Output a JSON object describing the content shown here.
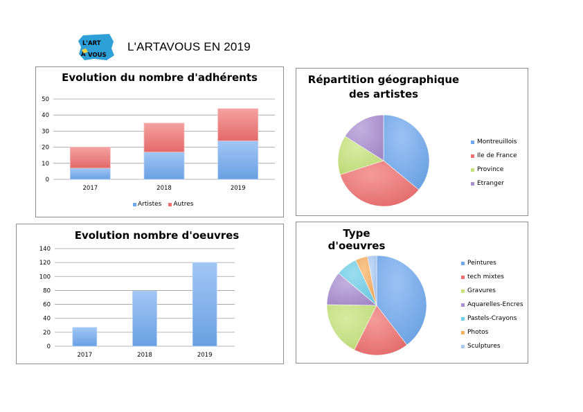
{
  "header": {
    "title": "L'ARTAVOUS EN 2019",
    "logo_text": "L'ART À VOUS",
    "logo_color": "#2f9fd8"
  },
  "colors": {
    "blue": "#6fa8ee",
    "red": "#ef6e6e",
    "green": "#c6e27a",
    "purple": "#a98ed0",
    "cyan": "#6fcfe8",
    "orange": "#f7ad5e",
    "lightblue": "#a9c9f5"
  },
  "chart_data": [
    {
      "type": "bar",
      "stacked": true,
      "title": "Evolution du nombre d'adhérents",
      "categories": [
        "2017",
        "2018",
        "2019"
      ],
      "series": [
        {
          "name": "Artistes",
          "values": [
            7,
            17,
            24
          ],
          "color": "#6fa8ee"
        },
        {
          "name": "Autres",
          "values": [
            13,
            18,
            20
          ],
          "color": "#ef6e6e"
        }
      ],
      "yticks": [
        "0",
        "10",
        "20",
        "30",
        "40",
        "50"
      ],
      "ylim": [
        0,
        50
      ],
      "grid": true,
      "legend": "bottom"
    },
    {
      "type": "pie",
      "title": "Répartition géographique des artistes",
      "labels": [
        "Montreuillois",
        "Ile de France",
        "Province",
        "Etranger"
      ],
      "values": [
        36,
        34,
        14,
        16
      ],
      "colors": [
        "#6fa8ee",
        "#ef6e6e",
        "#c6e27a",
        "#a98ed0"
      ],
      "legend": "right"
    },
    {
      "type": "bar",
      "title": "Evolution nombre d'oeuvres",
      "categories": [
        "2017",
        "2018",
        "2019"
      ],
      "values": [
        27,
        79,
        120
      ],
      "color": "#6fa8ee",
      "yticks": [
        "0",
        "20",
        "40",
        "60",
        "80",
        "100",
        "120",
        "140"
      ],
      "ylim": [
        0,
        140
      ],
      "grid": true
    },
    {
      "type": "pie",
      "title": "Type d'oeuvres",
      "labels": [
        "Peintures",
        "tech mixtes",
        "Gravures",
        "Aquarelles-Encres",
        "Pastels-Crayons",
        "Photos",
        "Sculptures"
      ],
      "values": [
        40,
        18,
        18,
        11,
        7,
        4,
        3
      ],
      "colors": [
        "#6fa8ee",
        "#ef6e6e",
        "#c6e27a",
        "#a98ed0",
        "#6fcfe8",
        "#f7ad5e",
        "#a9c9f5"
      ],
      "legend": "right"
    }
  ]
}
